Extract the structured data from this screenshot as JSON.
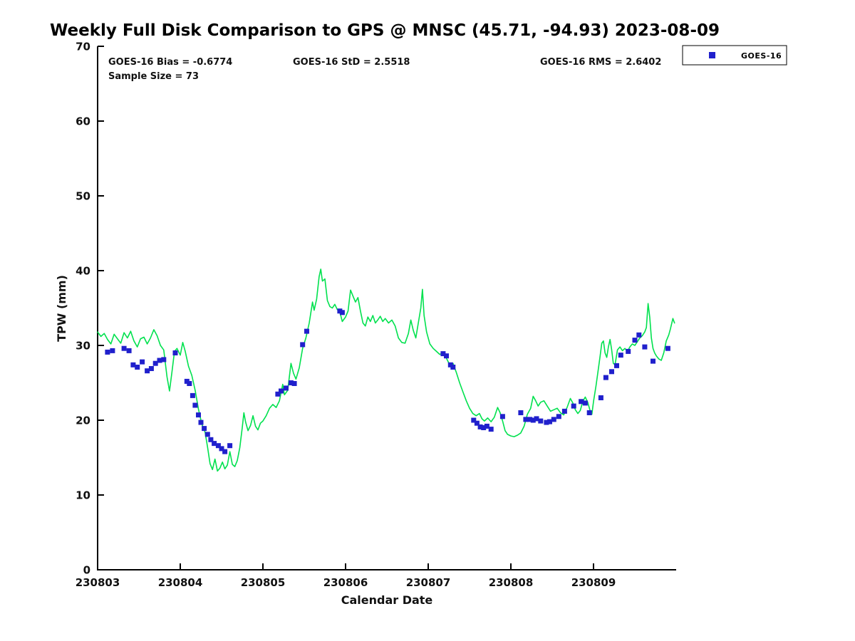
{
  "chart": {
    "title": "Weekly Full Disk Comparison to GPS @ MNSC (45.71, -94.93) 2023-08-09",
    "annotations": {
      "bias": "GOES-16 Bias = -0.6774",
      "std": "GOES-16 StD = 2.5518",
      "rms": "GOES-16 RMS = 2.6402",
      "sample": "Sample Size = 73"
    },
    "legend": {
      "label": "GOES-16",
      "marker_color": "#2020cc"
    }
  },
  "chart_data": {
    "type": "line+scatter",
    "title": "Weekly Full Disk Comparison to GPS @ MNSC (45.71, -94.93) 2023-08-09",
    "xlabel": "Calendar Date",
    "ylabel": "TPW (mm)",
    "ylim": [
      0,
      70
    ],
    "x_range_days": [
      0,
      7
    ],
    "x_tick_days": [
      0,
      1,
      2,
      3,
      4,
      5,
      6
    ],
    "x_tick_labels": [
      "230803",
      "230804",
      "230805",
      "230806",
      "230807",
      "230808",
      "230809"
    ],
    "y_ticks": [
      0,
      10,
      20,
      30,
      40,
      50,
      60,
      70
    ],
    "grid": false,
    "legend_position": "top-right",
    "stats": {
      "bias": -0.6774,
      "std": 2.5518,
      "rms": 2.6402,
      "sample_size": 73
    },
    "series": [
      {
        "name": "GPS",
        "type": "line",
        "color": "#00e14e",
        "points": [
          [
            0.0,
            31.8
          ],
          [
            0.04,
            31.2
          ],
          [
            0.08,
            31.6
          ],
          [
            0.12,
            30.8
          ],
          [
            0.16,
            30.2
          ],
          [
            0.2,
            31.5
          ],
          [
            0.24,
            30.9
          ],
          [
            0.28,
            30.3
          ],
          [
            0.32,
            31.7
          ],
          [
            0.36,
            31.0
          ],
          [
            0.4,
            31.9
          ],
          [
            0.44,
            30.6
          ],
          [
            0.48,
            29.8
          ],
          [
            0.52,
            30.9
          ],
          [
            0.56,
            31.1
          ],
          [
            0.6,
            30.2
          ],
          [
            0.64,
            31.0
          ],
          [
            0.68,
            32.1
          ],
          [
            0.72,
            31.3
          ],
          [
            0.76,
            30.0
          ],
          [
            0.8,
            29.4
          ],
          [
            0.84,
            25.8
          ],
          [
            0.87,
            23.9
          ],
          [
            0.9,
            26.5
          ],
          [
            0.93,
            29.2
          ],
          [
            0.96,
            29.6
          ],
          [
            1.0,
            28.7
          ],
          [
            1.03,
            30.4
          ],
          [
            1.06,
            29.2
          ],
          [
            1.1,
            27.2
          ],
          [
            1.14,
            26.0
          ],
          [
            1.18,
            24.0
          ],
          [
            1.22,
            21.5
          ],
          [
            1.26,
            19.5
          ],
          [
            1.3,
            18.4
          ],
          [
            1.33,
            16.4
          ],
          [
            1.36,
            14.2
          ],
          [
            1.39,
            13.4
          ],
          [
            1.42,
            14.8
          ],
          [
            1.45,
            13.2
          ],
          [
            1.48,
            13.6
          ],
          [
            1.51,
            14.4
          ],
          [
            1.54,
            13.5
          ],
          [
            1.57,
            14.0
          ],
          [
            1.6,
            15.8
          ],
          [
            1.63,
            14.1
          ],
          [
            1.66,
            13.8
          ],
          [
            1.69,
            14.6
          ],
          [
            1.72,
            16.3
          ],
          [
            1.75,
            19.0
          ],
          [
            1.77,
            21.0
          ],
          [
            1.79,
            19.8
          ],
          [
            1.82,
            18.6
          ],
          [
            1.85,
            19.3
          ],
          [
            1.88,
            20.6
          ],
          [
            1.91,
            19.2
          ],
          [
            1.94,
            18.7
          ],
          [
            1.97,
            19.6
          ],
          [
            2.0,
            19.9
          ],
          [
            2.04,
            20.6
          ],
          [
            2.08,
            21.6
          ],
          [
            2.12,
            22.1
          ],
          [
            2.16,
            21.7
          ],
          [
            2.2,
            22.6
          ],
          [
            2.24,
            24.8
          ],
          [
            2.26,
            23.4
          ],
          [
            2.3,
            24.0
          ],
          [
            2.34,
            27.6
          ],
          [
            2.37,
            26.3
          ],
          [
            2.4,
            25.5
          ],
          [
            2.44,
            27.0
          ],
          [
            2.48,
            29.6
          ],
          [
            2.52,
            31.0
          ],
          [
            2.56,
            33.0
          ],
          [
            2.6,
            35.8
          ],
          [
            2.62,
            34.7
          ],
          [
            2.65,
            36.2
          ],
          [
            2.68,
            39.2
          ],
          [
            2.7,
            40.2
          ],
          [
            2.72,
            38.6
          ],
          [
            2.75,
            38.9
          ],
          [
            2.78,
            36.0
          ],
          [
            2.81,
            35.2
          ],
          [
            2.84,
            35.0
          ],
          [
            2.87,
            35.5
          ],
          [
            2.9,
            34.8
          ],
          [
            2.93,
            34.5
          ],
          [
            2.96,
            33.2
          ],
          [
            3.0,
            33.8
          ],
          [
            3.03,
            34.6
          ],
          [
            3.06,
            37.4
          ],
          [
            3.09,
            36.6
          ],
          [
            3.12,
            35.8
          ],
          [
            3.15,
            36.4
          ],
          [
            3.18,
            34.6
          ],
          [
            3.21,
            33.0
          ],
          [
            3.24,
            32.6
          ],
          [
            3.27,
            33.8
          ],
          [
            3.3,
            33.2
          ],
          [
            3.33,
            34.0
          ],
          [
            3.36,
            33.0
          ],
          [
            3.39,
            33.4
          ],
          [
            3.42,
            33.9
          ],
          [
            3.45,
            33.2
          ],
          [
            3.48,
            33.6
          ],
          [
            3.52,
            33.0
          ],
          [
            3.56,
            33.4
          ],
          [
            3.6,
            32.6
          ],
          [
            3.64,
            31.0
          ],
          [
            3.68,
            30.4
          ],
          [
            3.72,
            30.3
          ],
          [
            3.76,
            31.6
          ],
          [
            3.79,
            33.4
          ],
          [
            3.82,
            32.0
          ],
          [
            3.85,
            31.0
          ],
          [
            3.88,
            33.0
          ],
          [
            3.91,
            35.0
          ],
          [
            3.93,
            37.5
          ],
          [
            3.95,
            34.0
          ],
          [
            3.98,
            31.8
          ],
          [
            4.02,
            30.2
          ],
          [
            4.06,
            29.6
          ],
          [
            4.1,
            29.2
          ],
          [
            4.14,
            28.8
          ],
          [
            4.18,
            29.0
          ],
          [
            4.22,
            28.3
          ],
          [
            4.26,
            27.4
          ],
          [
            4.3,
            27.6
          ],
          [
            4.34,
            26.4
          ],
          [
            4.38,
            25.0
          ],
          [
            4.42,
            23.8
          ],
          [
            4.46,
            22.6
          ],
          [
            4.5,
            21.6
          ],
          [
            4.54,
            20.9
          ],
          [
            4.58,
            20.6
          ],
          [
            4.62,
            20.9
          ],
          [
            4.65,
            20.2
          ],
          [
            4.68,
            19.9
          ],
          [
            4.72,
            20.3
          ],
          [
            4.76,
            19.8
          ],
          [
            4.8,
            20.4
          ],
          [
            4.84,
            21.7
          ],
          [
            4.87,
            21.0
          ],
          [
            4.9,
            19.9
          ],
          [
            4.93,
            18.6
          ],
          [
            4.96,
            18.1
          ],
          [
            5.0,
            17.9
          ],
          [
            5.04,
            17.8
          ],
          [
            5.08,
            18.0
          ],
          [
            5.12,
            18.3
          ],
          [
            5.16,
            19.2
          ],
          [
            5.2,
            20.8
          ],
          [
            5.24,
            21.6
          ],
          [
            5.27,
            23.2
          ],
          [
            5.3,
            22.6
          ],
          [
            5.33,
            21.9
          ],
          [
            5.36,
            22.4
          ],
          [
            5.4,
            22.6
          ],
          [
            5.44,
            21.9
          ],
          [
            5.48,
            21.2
          ],
          [
            5.52,
            21.4
          ],
          [
            5.56,
            21.6
          ],
          [
            5.6,
            21.0
          ],
          [
            5.64,
            20.7
          ],
          [
            5.68,
            21.7
          ],
          [
            5.72,
            22.9
          ],
          [
            5.75,
            22.3
          ],
          [
            5.78,
            21.4
          ],
          [
            5.81,
            20.9
          ],
          [
            5.84,
            21.3
          ],
          [
            5.87,
            22.5
          ],
          [
            5.9,
            23.1
          ],
          [
            5.93,
            22.4
          ],
          [
            5.96,
            21.2
          ],
          [
            5.98,
            20.8
          ],
          [
            6.0,
            22.5
          ],
          [
            6.03,
            24.6
          ],
          [
            6.06,
            27.0
          ],
          [
            6.08,
            28.6
          ],
          [
            6.1,
            30.3
          ],
          [
            6.12,
            30.6
          ],
          [
            6.14,
            29.0
          ],
          [
            6.16,
            28.4
          ],
          [
            6.18,
            29.8
          ],
          [
            6.2,
            30.8
          ],
          [
            6.22,
            29.4
          ],
          [
            6.24,
            27.6
          ],
          [
            6.26,
            27.4
          ],
          [
            6.29,
            29.4
          ],
          [
            6.32,
            29.8
          ],
          [
            6.35,
            29.3
          ],
          [
            6.38,
            29.6
          ],
          [
            6.41,
            29.2
          ],
          [
            6.44,
            29.8
          ],
          [
            6.47,
            30.2
          ],
          [
            6.5,
            30.0
          ],
          [
            6.53,
            30.5
          ],
          [
            6.56,
            31.0
          ],
          [
            6.59,
            31.3
          ],
          [
            6.62,
            31.8
          ],
          [
            6.64,
            32.4
          ],
          [
            6.66,
            35.6
          ],
          [
            6.68,
            33.8
          ],
          [
            6.7,
            31.0
          ],
          [
            6.72,
            29.6
          ],
          [
            6.74,
            29.0
          ],
          [
            6.76,
            28.6
          ],
          [
            6.79,
            28.2
          ],
          [
            6.82,
            28.0
          ],
          [
            6.85,
            29.0
          ],
          [
            6.88,
            30.6
          ],
          [
            6.91,
            31.4
          ],
          [
            6.93,
            32.2
          ],
          [
            6.96,
            33.6
          ],
          [
            6.98,
            33.0
          ]
        ]
      },
      {
        "name": "GOES-16",
        "type": "scatter",
        "color": "#2020cc",
        "marker": "square",
        "points": [
          [
            0.12,
            29.1
          ],
          [
            0.18,
            29.3
          ],
          [
            0.32,
            29.6
          ],
          [
            0.38,
            29.3
          ],
          [
            0.43,
            27.4
          ],
          [
            0.48,
            27.1
          ],
          [
            0.54,
            27.8
          ],
          [
            0.6,
            26.6
          ],
          [
            0.65,
            26.9
          ],
          [
            0.7,
            27.6
          ],
          [
            0.75,
            28.0
          ],
          [
            0.8,
            28.1
          ],
          [
            0.94,
            29.0
          ],
          [
            1.08,
            25.2
          ],
          [
            1.11,
            24.9
          ],
          [
            1.15,
            23.3
          ],
          [
            1.18,
            22.0
          ],
          [
            1.22,
            20.7
          ],
          [
            1.25,
            19.7
          ],
          [
            1.29,
            18.9
          ],
          [
            1.33,
            18.1
          ],
          [
            1.37,
            17.4
          ],
          [
            1.41,
            16.9
          ],
          [
            1.46,
            16.6
          ],
          [
            1.5,
            16.2
          ],
          [
            1.54,
            15.8
          ],
          [
            1.6,
            16.6
          ],
          [
            2.18,
            23.5
          ],
          [
            2.22,
            23.9
          ],
          [
            2.28,
            24.3
          ],
          [
            2.34,
            25.0
          ],
          [
            2.38,
            24.9
          ],
          [
            2.48,
            30.1
          ],
          [
            2.53,
            31.9
          ],
          [
            2.93,
            34.6
          ],
          [
            2.96,
            34.4
          ],
          [
            4.18,
            28.9
          ],
          [
            4.22,
            28.6
          ],
          [
            4.27,
            27.4
          ],
          [
            4.3,
            27.1
          ],
          [
            4.55,
            20.0
          ],
          [
            4.59,
            19.6
          ],
          [
            4.63,
            19.1
          ],
          [
            4.67,
            19.0
          ],
          [
            4.71,
            19.2
          ],
          [
            4.76,
            18.8
          ],
          [
            4.9,
            20.5
          ],
          [
            5.12,
            21.0
          ],
          [
            5.18,
            20.1
          ],
          [
            5.23,
            20.1
          ],
          [
            5.27,
            20.0
          ],
          [
            5.31,
            20.2
          ],
          [
            5.36,
            19.9
          ],
          [
            5.43,
            19.7
          ],
          [
            5.47,
            19.8
          ],
          [
            5.52,
            20.1
          ],
          [
            5.58,
            20.5
          ],
          [
            5.65,
            21.2
          ],
          [
            5.76,
            21.9
          ],
          [
            5.85,
            22.5
          ],
          [
            5.9,
            22.3
          ],
          [
            5.95,
            21.0
          ],
          [
            6.09,
            23.0
          ],
          [
            6.15,
            25.7
          ],
          [
            6.22,
            26.5
          ],
          [
            6.28,
            27.3
          ],
          [
            6.33,
            28.7
          ],
          [
            6.42,
            29.2
          ],
          [
            6.5,
            30.7
          ],
          [
            6.55,
            31.4
          ],
          [
            6.62,
            29.8
          ],
          [
            6.72,
            27.9
          ],
          [
            6.9,
            29.6
          ]
        ]
      }
    ]
  }
}
